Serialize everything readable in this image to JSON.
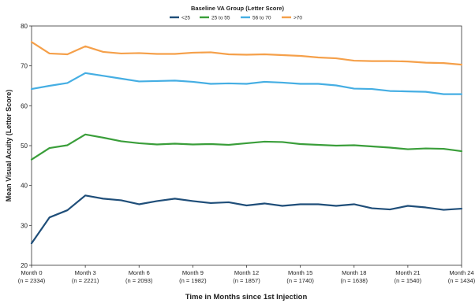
{
  "chart_data": {
    "type": "line",
    "legend": {
      "title": "Baseline VA Group (Letter Score)",
      "placement": "top-center"
    },
    "xlabel": "Time in Months since 1st Injection",
    "ylabel": "Mean Visual Acuity (Letter Score)",
    "ylim": [
      20,
      80
    ],
    "yticks": [
      20,
      30,
      40,
      50,
      60,
      70,
      80
    ],
    "xlim": [
      0,
      24
    ],
    "grid": false,
    "x": [
      0,
      1,
      2,
      3,
      4,
      5,
      6,
      7,
      8,
      9,
      10,
      11,
      12,
      13,
      14,
      15,
      16,
      17,
      18,
      19,
      20,
      21,
      22,
      23,
      24
    ],
    "xticks": [
      {
        "x": 0,
        "label": "Month 0",
        "sublabel": "(n = 2334)"
      },
      {
        "x": 3,
        "label": "Month 3",
        "sublabel": "(n = 2221)"
      },
      {
        "x": 6,
        "label": "Month 6",
        "sublabel": "(n = 2093)"
      },
      {
        "x": 9,
        "label": "Month 9",
        "sublabel": "(n = 1982)"
      },
      {
        "x": 12,
        "label": "Month 12",
        "sublabel": "(n = 1857)"
      },
      {
        "x": 15,
        "label": "Month 15",
        "sublabel": "(n = 1740)"
      },
      {
        "x": 18,
        "label": "Month 18",
        "sublabel": "(n = 1638)"
      },
      {
        "x": 21,
        "label": "Month 21",
        "sublabel": "(n = 1540)"
      },
      {
        "x": 24,
        "label": "Month 24",
        "sublabel": "(n = 1434)"
      }
    ],
    "series": [
      {
        "name": "<25",
        "color": "#1f4e79",
        "values": [
          25.5,
          32,
          33.8,
          37.5,
          36.7,
          36.3,
          35.3,
          36.1,
          36.7,
          36.1,
          35.6,
          35.8,
          35.0,
          35.5,
          34.9,
          35.3,
          35.3,
          34.9,
          35.3,
          34.3,
          34.0,
          34.9,
          34.5,
          33.9,
          34.2
        ]
      },
      {
        "name": "25 to 55",
        "color": "#3a9e3a",
        "values": [
          46.5,
          49.4,
          50.1,
          52.8,
          52.0,
          51.1,
          50.6,
          50.3,
          50.5,
          50.3,
          50.4,
          50.2,
          50.6,
          51.0,
          50.9,
          50.4,
          50.2,
          50.0,
          50.1,
          49.8,
          49.5,
          49.1,
          49.3,
          49.2,
          48.6
        ]
      },
      {
        "name": "56 to 70",
        "color": "#45aee3",
        "values": [
          64.2,
          65.0,
          65.7,
          68.2,
          67.5,
          66.8,
          66.1,
          66.2,
          66.3,
          66.0,
          65.5,
          65.6,
          65.5,
          66.0,
          65.8,
          65.5,
          65.5,
          65.1,
          64.3,
          64.2,
          63.7,
          63.6,
          63.5,
          62.9,
          62.9
        ]
      },
      {
        "name": ">70",
        "color": "#f5a04a",
        "values": [
          76.0,
          73.1,
          72.9,
          74.9,
          73.5,
          73.1,
          73.2,
          73.0,
          73.0,
          73.3,
          73.4,
          72.9,
          72.8,
          72.9,
          72.7,
          72.5,
          72.1,
          71.9,
          71.3,
          71.2,
          71.2,
          71.1,
          70.8,
          70.7,
          70.3
        ]
      }
    ]
  }
}
